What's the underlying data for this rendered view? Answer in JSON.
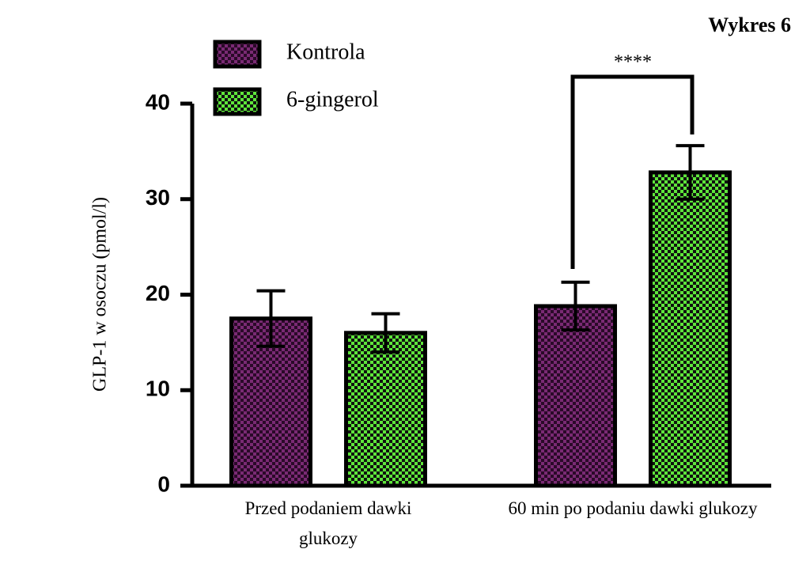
{
  "chart_data": {
    "type": "bar",
    "title": "Wykres 6",
    "ylabel": "GLP-1 w osoczu (pmol/l)",
    "categories": [
      "Przed podaniem dawki glukozy",
      "60 min po podaniu dawki glukozy"
    ],
    "series": [
      {
        "name": "Kontrola",
        "color": "#7a2a74",
        "values": [
          17.5,
          18.8
        ],
        "errors": [
          2.9,
          2.5
        ]
      },
      {
        "name": "6-gingerol",
        "color": "#5ee63a",
        "values": [
          16,
          32.8
        ],
        "errors": [
          2,
          2.8
        ]
      }
    ],
    "annotation": "****",
    "ylim": [
      0,
      40
    ],
    "yticks": [
      0,
      10,
      20,
      30,
      40
    ],
    "legend": "upper-left"
  }
}
